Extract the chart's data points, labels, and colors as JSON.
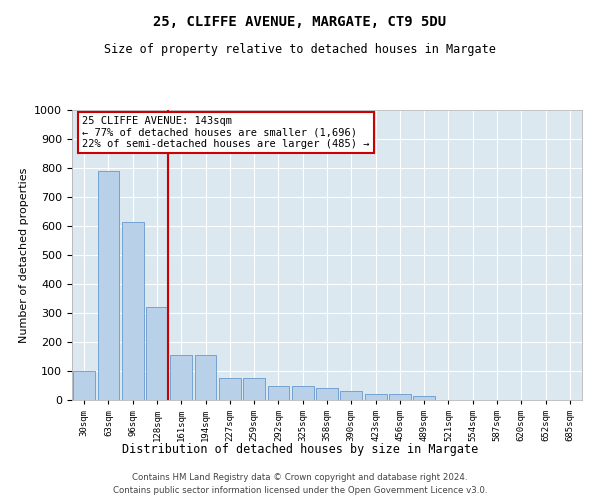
{
  "title1": "25, CLIFFE AVENUE, MARGATE, CT9 5DU",
  "title2": "Size of property relative to detached houses in Margate",
  "xlabel": "Distribution of detached houses by size in Margate",
  "ylabel": "Number of detached properties",
  "categories": [
    "30sqm",
    "63sqm",
    "96sqm",
    "128sqm",
    "161sqm",
    "194sqm",
    "227sqm",
    "259sqm",
    "292sqm",
    "325sqm",
    "358sqm",
    "390sqm",
    "423sqm",
    "456sqm",
    "489sqm",
    "521sqm",
    "554sqm",
    "587sqm",
    "620sqm",
    "652sqm",
    "685sqm"
  ],
  "values": [
    100,
    790,
    615,
    320,
    155,
    155,
    75,
    75,
    50,
    50,
    40,
    30,
    20,
    20,
    15,
    0,
    0,
    0,
    0,
    0,
    0
  ],
  "bar_color": "#b8d0e8",
  "bar_edge_color": "#6699cc",
  "vline_color": "#cc0000",
  "annotation_text": "25 CLIFFE AVENUE: 143sqm\n← 77% of detached houses are smaller (1,696)\n22% of semi-detached houses are larger (485) →",
  "annotation_box_edgecolor": "#cc0000",
  "ylim": [
    0,
    1000
  ],
  "yticks": [
    0,
    100,
    200,
    300,
    400,
    500,
    600,
    700,
    800,
    900,
    1000
  ],
  "plot_bg_color": "#dce8f0",
  "footer1": "Contains HM Land Registry data © Crown copyright and database right 2024.",
  "footer2": "Contains public sector information licensed under the Open Government Licence v3.0."
}
